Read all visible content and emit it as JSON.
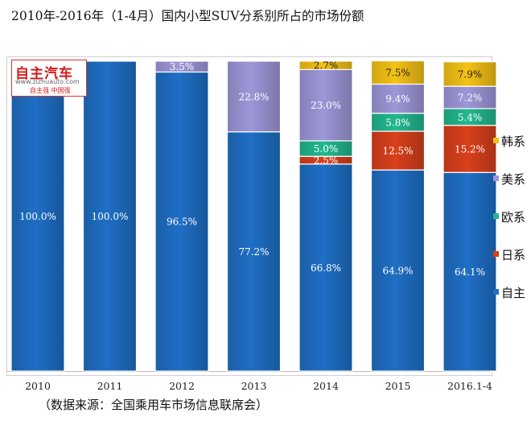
{
  "title": "2010年-2016年（1-4月）国内小型SUV分系别所占的市场份额",
  "source": "（数据来源：全国乘用车市场信息联席会）",
  "logo": {
    "brand": "自主汽车",
    "url": "www.zizhuauto.com",
    "tagline": "自主强 中国强"
  },
  "chart_data": {
    "type": "bar",
    "stacked": true,
    "categories": [
      "2010",
      "2011",
      "2012",
      "2013",
      "2014",
      "2015",
      "2016.1-4"
    ],
    "ylim": [
      0,
      100
    ],
    "grid": false,
    "legend_position": "right",
    "series": [
      {
        "name": "自主",
        "color": "#1f6fc5",
        "values": [
          100.0,
          100.0,
          96.5,
          77.2,
          66.8,
          64.9,
          64.1
        ],
        "labels": [
          "100.0%",
          "100.0%",
          "96.5%",
          "77.2%",
          "66.8%",
          "64.9%",
          "64.1%"
        ]
      },
      {
        "name": "日系",
        "color": "#d8401c",
        "values": [
          0,
          0,
          0,
          0,
          2.5,
          12.5,
          15.2
        ],
        "labels": [
          "",
          "",
          "",
          "",
          "2.5%",
          "12.5%",
          "15.2%"
        ]
      },
      {
        "name": "欧系",
        "color": "#22b88f",
        "values": [
          0,
          0,
          0,
          0,
          5.0,
          5.8,
          5.4
        ],
        "labels": [
          "",
          "",
          "",
          "",
          "5.0%",
          "5.8%",
          "5.4%"
        ]
      },
      {
        "name": "美系",
        "color": "#9e97d9",
        "values": [
          0,
          0,
          3.5,
          22.8,
          23.0,
          9.4,
          7.2
        ],
        "labels": [
          "",
          "",
          "3.5%",
          "22.8%",
          "23.0%",
          "9.4%",
          "7.2%"
        ]
      },
      {
        "name": "韩系",
        "color": "#f4c215",
        "values": [
          0,
          0,
          0,
          0,
          2.7,
          7.5,
          7.9
        ],
        "labels": [
          "",
          "",
          "",
          "",
          "2.7%",
          "7.5%",
          "7.9%"
        ]
      }
    ]
  }
}
